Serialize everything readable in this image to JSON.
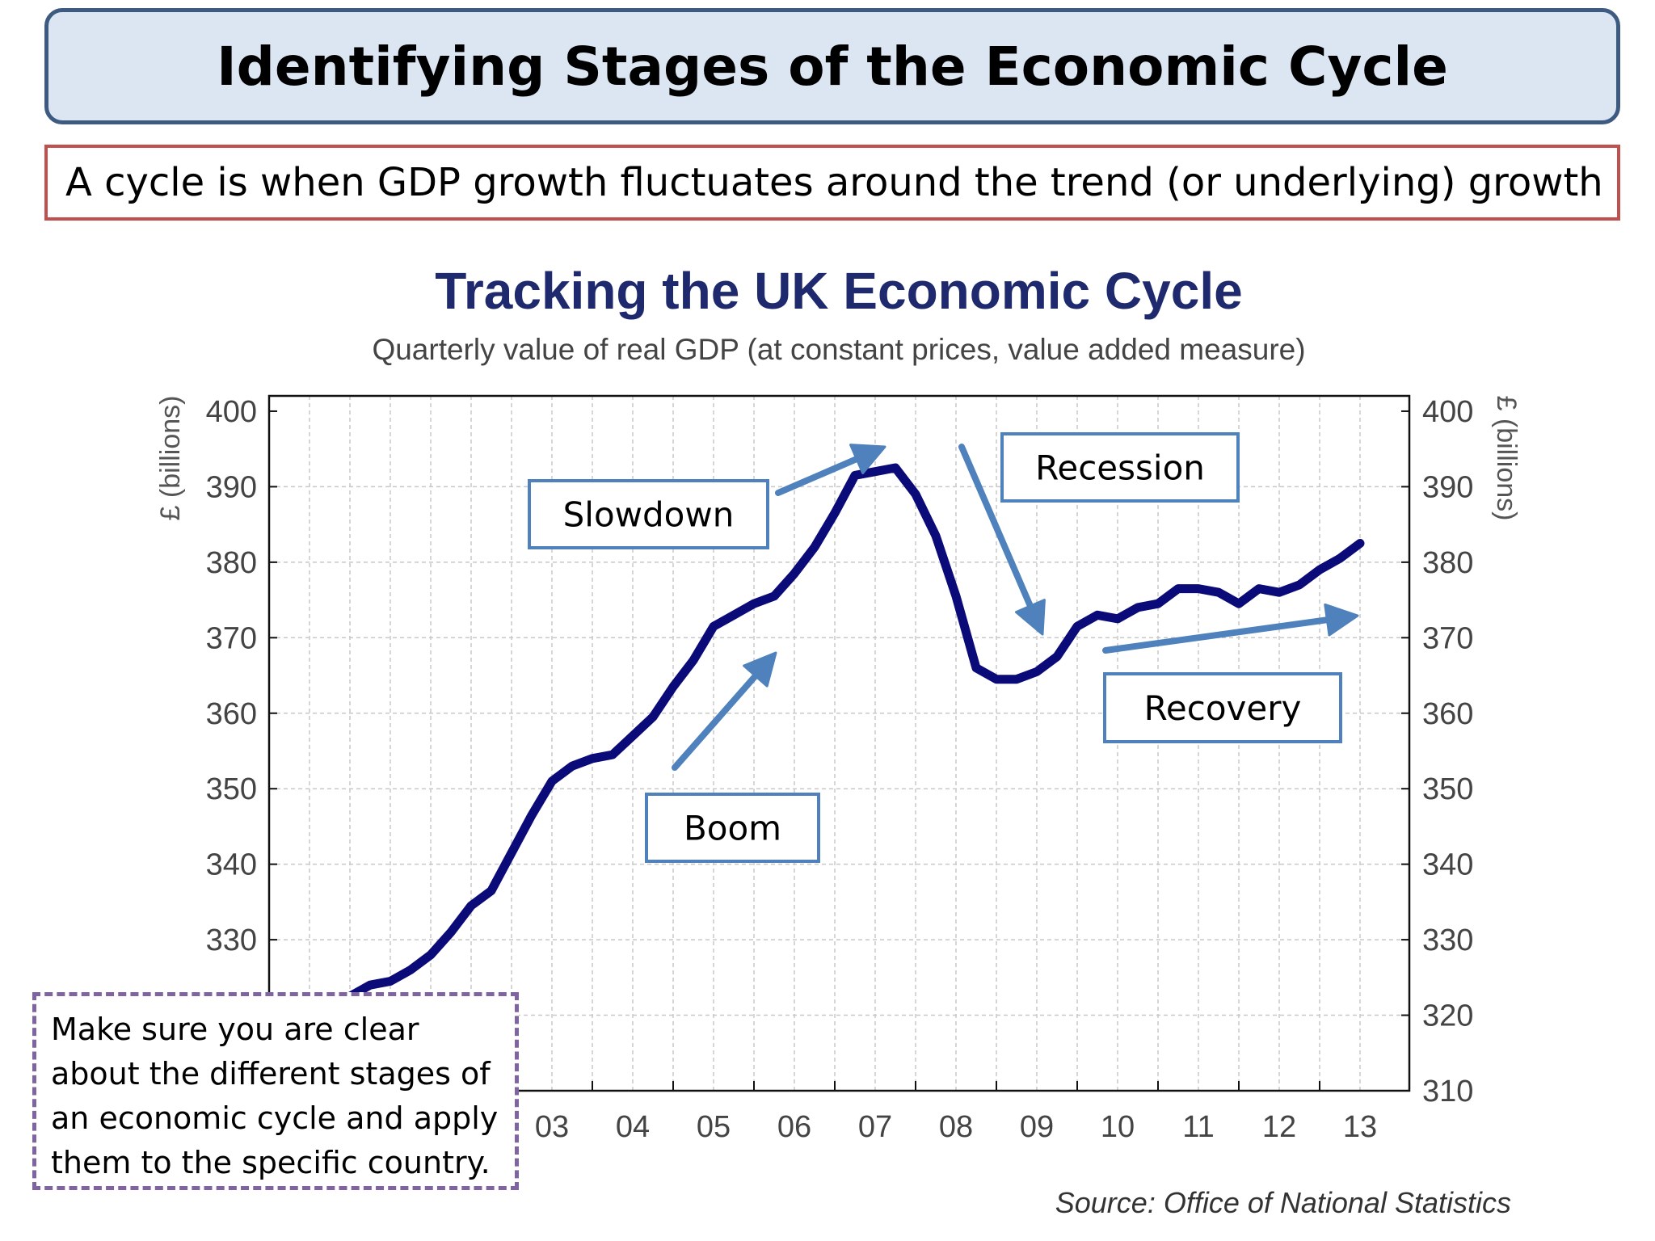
{
  "slide": {
    "title": "Identifying Stages of the Economic Cycle",
    "definition": "A cycle is when GDP growth fluctuates around the trend (or underlying) growth",
    "note": "Make sure you are clear about the different stages of an economic cycle and apply them to the specific country.",
    "source": "Source: Office of National Statistics"
  },
  "chart_data": {
    "type": "line",
    "title": "Tracking the UK Economic Cycle",
    "subtitle": "Quarterly value of real GDP (at constant prices, value added measure)",
    "ylabel_left": "£ (billions)",
    "ylabel_right": "£ (billions)",
    "ylim": [
      310,
      400
    ],
    "yticks_left": [
      330,
      340,
      350,
      360,
      370,
      380,
      390,
      400
    ],
    "yticks_right": [
      310,
      320,
      330,
      340,
      350,
      360,
      370,
      380,
      390,
      400
    ],
    "xlim": [
      2000.0,
      2013.75
    ],
    "xtick_labels": [
      "03",
      "04",
      "05",
      "06",
      "07",
      "08",
      "09",
      "10",
      "11",
      "12",
      "13"
    ],
    "xtick_positions": [
      2003,
      2004,
      2005,
      2006,
      2007,
      2008,
      2009,
      2010,
      2011,
      2012,
      2013
    ],
    "grid": true,
    "line_color": "#0a0a78",
    "arrow_color": "#4f81bd",
    "series": [
      {
        "x": [
          2000.0,
          2000.25,
          2000.5,
          2000.75,
          2001.0,
          2001.25,
          2001.5,
          2001.75,
          2002.0,
          2002.25,
          2002.5,
          2002.75,
          2003.0,
          2003.25,
          2003.5,
          2003.75,
          2004.0,
          2004.25,
          2004.5,
          2004.75,
          2005.0,
          2005.25,
          2005.5,
          2005.75,
          2006.0,
          2006.25,
          2006.5,
          2006.75,
          2007.0,
          2007.25,
          2007.5,
          2007.75,
          2008.0,
          2008.25,
          2008.5,
          2008.75,
          2009.0,
          2009.25,
          2009.5,
          2009.75,
          2010.0,
          2010.25,
          2010.5,
          2010.75,
          2011.0,
          2011.25,
          2011.5,
          2011.75,
          2012.0,
          2012.25,
          2012.5,
          2012.75,
          2013.0,
          2013.25,
          2013.5
        ],
        "values": [
          315.5,
          318.0,
          320.0,
          321.5,
          322.5,
          324.0,
          324.5,
          326.0,
          328.0,
          331.0,
          334.5,
          336.5,
          341.5,
          346.5,
          351.0,
          353.0,
          354.0,
          354.5,
          357.0,
          359.5,
          363.5,
          367.0,
          371.5,
          373.0,
          374.5,
          375.5,
          378.5,
          382.0,
          386.5,
          391.5,
          392.0,
          392.5,
          389.0,
          383.5,
          375.5,
          366.0,
          364.5,
          364.5,
          365.5,
          367.5,
          371.5,
          373.0,
          372.5,
          374.0,
          374.5,
          376.5,
          376.5,
          376.0,
          374.5,
          376.5,
          376.0,
          377.0,
          379.0,
          380.5,
          382.5
        ]
      }
    ],
    "annotations": [
      {
        "label": "Boom"
      },
      {
        "label": "Slowdown"
      },
      {
        "label": "Recession"
      },
      {
        "label": "Recovery"
      }
    ]
  }
}
